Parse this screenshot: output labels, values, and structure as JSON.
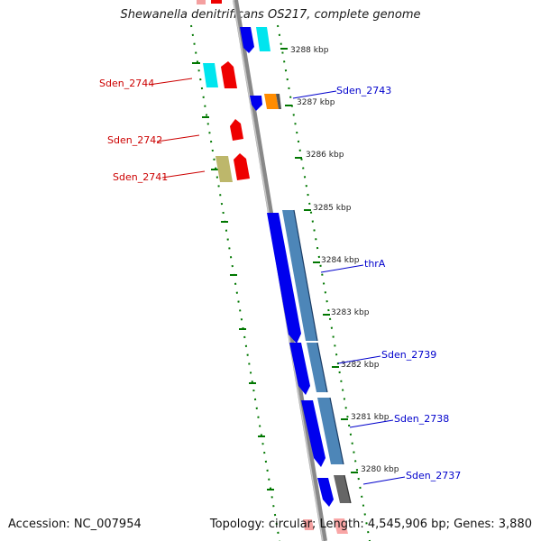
{
  "title": "Shewanella denitrificans OS217, complete genome",
  "accession": "Accession: NC_007954",
  "summary": "Topology: circular; Length: 4,545,906 bp; Genes: 3,880",
  "colors": {
    "forward_gene": "#0000ee",
    "reverse_gene": "#ee0000",
    "cds_steel": "#4d86b8",
    "cyan": "#00e5ee",
    "orange": "#ff8c00",
    "khaki": "#bdb76b",
    "gray": "#666666",
    "tick_green": "#007700",
    "label_red": "#cc0000",
    "label_blue": "#0000cc"
  },
  "scale_labels": [
    "3288 kbp",
    "3287 kbp",
    "3286 kbp",
    "3285 kbp",
    "3284 kbp",
    "3283 kbp",
    "3282 kbp",
    "3281 kbp",
    "3280 kbp"
  ],
  "gene_labels": {
    "left": [
      "Sden_2744",
      "Sden_2742",
      "Sden_2741"
    ],
    "right": [
      "Sden_2743",
      "thrA",
      "Sden_2739",
      "Sden_2738",
      "Sden_2737"
    ]
  }
}
